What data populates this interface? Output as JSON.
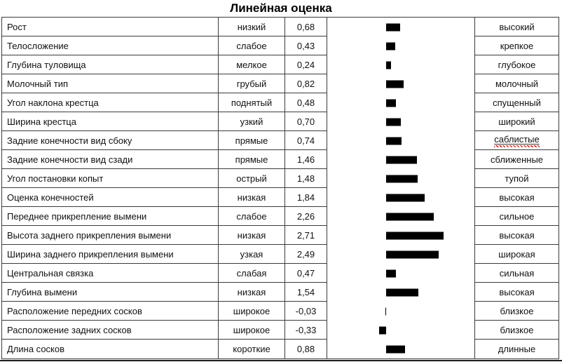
{
  "title": "Линейная оценка",
  "colors": {
    "bar": "#000000",
    "border": "#3b3b3b",
    "text": "#111111",
    "background": "#ffffff",
    "spellcheck_underline": "#e02b20"
  },
  "chart_data": {
    "type": "bar",
    "orientation": "horizontal",
    "title": "Линейная оценка",
    "grid": false,
    "xlim": [
      -2.8,
      4.2
    ],
    "bar_color": "#000000",
    "categories": [
      "Рост",
      "Телосложение",
      "Глубина туловища",
      "Молочный тип",
      "Угол наклона крестца",
      "Ширина крестца",
      "Задние конечности вид сбоку",
      "Задние конечности вид сзади",
      "Угол постановки копыт",
      "Оценка конечностей",
      "Переднее прикрепление вымени",
      "Высота заднего прикрепления вымени",
      "Ширина заднего прикрепления вымени",
      "Центральная связка",
      "Глубина вымени",
      "Расположение передних сосков",
      "Расположение задних сосков",
      "Длина сосков"
    ],
    "values": [
      0.68,
      0.43,
      0.24,
      0.82,
      0.48,
      0.7,
      0.74,
      1.46,
      1.48,
      1.84,
      2.26,
      2.71,
      2.49,
      0.47,
      1.54,
      -0.03,
      -0.33,
      0.88
    ],
    "value_labels": [
      "0,68",
      "0,43",
      "0,24",
      "0,82",
      "0,48",
      "0,70",
      "0,74",
      "1,46",
      "1,48",
      "1,84",
      "2,26",
      "2,71",
      "2,49",
      "0,47",
      "1,54",
      "-0,03",
      "-0,33",
      "0,88"
    ],
    "low_labels": [
      "низкий",
      "слабое",
      "мелкое",
      "грубый",
      "поднятый",
      "узкий",
      "прямые",
      "прямые",
      "острый",
      "низкая",
      "слабое",
      "низкая",
      "узкая",
      "слабая",
      "низкая",
      "широкое",
      "широкое",
      "короткие"
    ],
    "high_labels": [
      "высокий",
      "крепкое",
      "глубокое",
      "молочный",
      "спущенный",
      "широкий",
      "саблистые",
      "сближенные",
      "тупой",
      "высокая",
      "сильное",
      "высокая",
      "широкая",
      "сильная",
      "высокая",
      "близкое",
      "близкое",
      "длинные"
    ],
    "high_label_red_wavy_underline_index": 6
  }
}
